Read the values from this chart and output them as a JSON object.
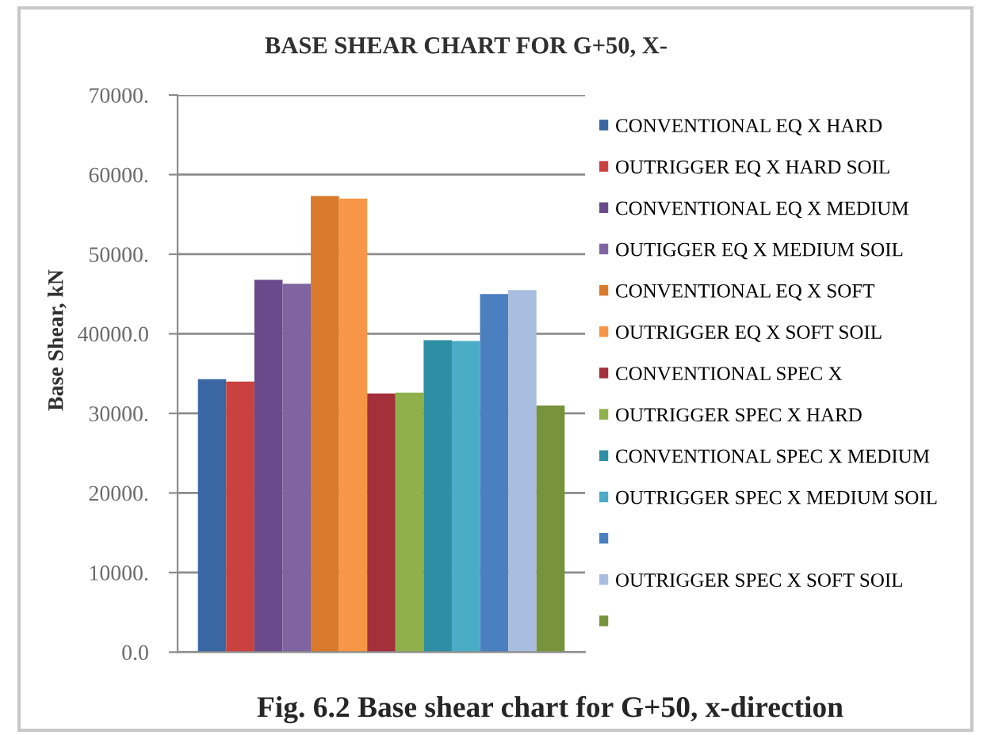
{
  "chart_data": {
    "type": "bar",
    "title": "BASE SHEAR CHART FOR G+50, X-",
    "ylabel": "Base Shear, kN",
    "annotations": [
      "Fig. 6.2 Base shear chart for G+50, x-direction"
    ],
    "categories": [
      null
    ],
    "series": [
      {
        "name": "CONVENTIONAL EQ X HARD",
        "color": "#3a67a3",
        "values": [
          34300
        ]
      },
      {
        "name": "OUTRIGGER EQ X HARD SOIL",
        "color": "#c9423f",
        "values": [
          34000
        ]
      },
      {
        "name": "CONVENTIONAL EQ X MEDIUM",
        "color": "#6a4a8a",
        "values": [
          46800
        ]
      },
      {
        "name": "OUTIGGER EQ X MEDIUM SOIL",
        "color": "#8064a2",
        "values": [
          46300
        ]
      },
      {
        "name": "CONVENTIONAL EQ X SOFT",
        "color": "#d9792b",
        "values": [
          57300
        ]
      },
      {
        "name": "OUTRIGGER EQ X SOFT SOIL",
        "color": "#f79646",
        "values": [
          57000
        ]
      },
      {
        "name": "CONVENTIONAL SPEC X",
        "color": "#a3303a",
        "values": [
          32500
        ]
      },
      {
        "name": "OUTRIGGER SPEC X HARD",
        "color": "#8fb04a",
        "values": [
          32600
        ]
      },
      {
        "name": "CONVENTIONAL SPEC X MEDIUM",
        "color": "#2e8fa4",
        "values": [
          39200
        ]
      },
      {
        "name": "OUTRIGGER SPEC X MEDIUM SOIL",
        "color": "#4bacc6",
        "values": [
          39100
        ]
      },
      {
        "color": "#4a7fc0",
        "values": [
          45000
        ]
      },
      {
        "name": "OUTRIGGER SPEC X SOFT SOIL",
        "color": "#a9bde0",
        "values": [
          45500
        ]
      },
      {
        "color": "#77933c",
        "values": [
          31000
        ]
      }
    ],
    "ylim": [
      0,
      70000
    ],
    "yticks": [
      {
        "value": 0,
        "label": "0.0"
      },
      {
        "value": 10000,
        "label": "10000."
      },
      {
        "value": 20000,
        "label": "20000."
      },
      {
        "value": 30000,
        "label": "30000."
      },
      {
        "value": 40000,
        "label": "40000.0"
      },
      {
        "value": 50000,
        "label": "50000."
      },
      {
        "value": 60000,
        "label": "60000."
      },
      {
        "value": 70000,
        "label": "70000."
      }
    ],
    "grid": "y",
    "legend": "right",
    "tick_labels": "y"
  }
}
